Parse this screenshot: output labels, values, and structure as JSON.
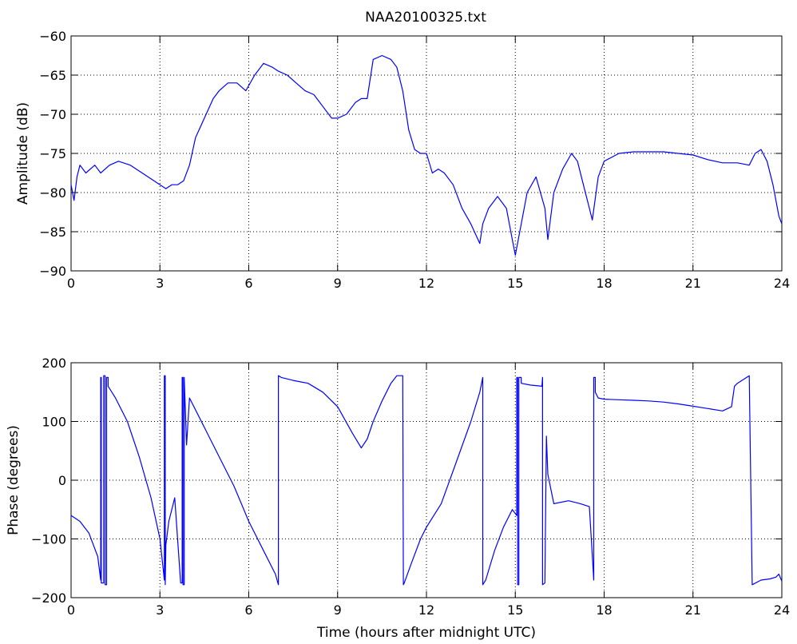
{
  "chart_data": [
    {
      "type": "line",
      "title": "NAA20100325.txt",
      "xlabel": "",
      "ylabel": "Amplitude (dB)",
      "xlim": [
        0,
        24
      ],
      "ylim": [
        -90,
        -60
      ],
      "xticks": [
        0,
        3,
        6,
        9,
        12,
        15,
        18,
        21,
        24
      ],
      "yticks": [
        -90,
        -85,
        -80,
        -75,
        -70,
        -65,
        -60
      ],
      "xtick_labels": [
        "0",
        "3",
        "6",
        "9",
        "12",
        "15",
        "18",
        "21",
        "24"
      ],
      "ytick_labels": [
        "−90",
        "−85",
        "−80",
        "−75",
        "−70",
        "−65",
        "−60"
      ],
      "grid": true,
      "color": "#0000ff",
      "series": [
        {
          "x": [
            0,
            0.1,
            0.2,
            0.3,
            0.5,
            0.8,
            1.0,
            1.3,
            1.6,
            2.0,
            2.4,
            2.8,
            3.0,
            3.2,
            3.4,
            3.6,
            3.8,
            4.0,
            4.2,
            4.5,
            4.8,
            5.0,
            5.3,
            5.6,
            5.9,
            6.2,
            6.5,
            6.8,
            7.0,
            7.3,
            7.6,
            7.9,
            8.2,
            8.5,
            8.8,
            9.0,
            9.3,
            9.6,
            9.8,
            10.0,
            10.2,
            10.5,
            10.8,
            11.0,
            11.2,
            11.4,
            11.6,
            11.8,
            12.0,
            12.2,
            12.4,
            12.6,
            12.9,
            13.2,
            13.5,
            13.8,
            13.9,
            14.1,
            14.4,
            14.7,
            14.9,
            15.0,
            15.2,
            15.4,
            15.7,
            16.0,
            16.1,
            16.3,
            16.6,
            16.9,
            17.1,
            17.3,
            17.5,
            17.6,
            17.8,
            18.0,
            18.5,
            19.0,
            19.5,
            20.0,
            20.5,
            21.0,
            21.5,
            22.0,
            22.5,
            22.9,
            23.1,
            23.3,
            23.5,
            23.7,
            23.9,
            24.0
          ],
          "values": [
            -79,
            -81,
            -78,
            -76.5,
            -77.5,
            -76.5,
            -77.5,
            -76.5,
            -76,
            -76.5,
            -77.5,
            -78.5,
            -79,
            -79.5,
            -79,
            -79,
            -78.5,
            -76.5,
            -73,
            -70.5,
            -68,
            -67,
            -66,
            -66,
            -67,
            -65,
            -63.5,
            -64,
            -64.5,
            -65,
            -66,
            -67,
            -67.5,
            -69,
            -70.5,
            -70.5,
            -70,
            -68.5,
            -68,
            -68,
            -63,
            -62.5,
            -63,
            -64,
            -67,
            -72,
            -74.5,
            -75,
            -75,
            -77.5,
            -77,
            -77.5,
            -79,
            -82,
            -84,
            -86.5,
            -84,
            -82,
            -80.5,
            -82,
            -86,
            -88,
            -84,
            -80,
            -78,
            -82,
            -86,
            -80,
            -77,
            -75,
            -76,
            -79,
            -82,
            -83.5,
            -78,
            -76,
            -75,
            -74.8,
            -74.8,
            -74.8,
            -75,
            -75.2,
            -75.8,
            -76.2,
            -76.2,
            -76.5,
            -75,
            -74.5,
            -76,
            -79,
            -83,
            -84
          ]
        }
      ]
    },
    {
      "type": "line",
      "title": "",
      "xlabel": "Time (hours after midnight UTC)",
      "ylabel": "Phase (degrees)",
      "xlim": [
        0,
        24
      ],
      "ylim": [
        -200,
        200
      ],
      "xticks": [
        0,
        3,
        6,
        9,
        12,
        15,
        18,
        21,
        24
      ],
      "yticks": [
        -200,
        -100,
        0,
        100,
        200
      ],
      "xtick_labels": [
        "0",
        "3",
        "6",
        "9",
        "12",
        "15",
        "18",
        "21",
        "24"
      ],
      "ytick_labels": [
        "−200",
        "−100",
        "0",
        "100",
        "200"
      ],
      "grid": true,
      "color": "#0000ff",
      "series": [
        {
          "x": [
            0,
            0.3,
            0.6,
            0.9,
            1.0,
            1.0,
            1.02,
            1.02,
            1.1,
            1.1,
            1.15,
            1.15,
            1.2,
            1.2,
            1.25,
            1.25,
            1.5,
            1.9,
            2.3,
            2.7,
            3.0,
            3.15,
            3.15,
            3.18,
            3.18,
            3.2,
            3.3,
            3.5,
            3.7,
            3.75,
            3.75,
            3.78,
            3.78,
            3.82,
            3.82,
            3.9,
            4.0,
            4.5,
            5.0,
            5.5,
            6.0,
            6.5,
            6.9,
            7.0,
            7.0,
            7.1,
            7.5,
            8.0,
            8.5,
            9.0,
            9.5,
            9.8,
            10.0,
            10.2,
            10.5,
            10.8,
            11.0,
            11.2,
            11.22,
            11.22,
            11.25,
            11.5,
            11.8,
            12.0,
            12.5,
            13.0,
            13.5,
            13.8,
            13.9,
            13.9,
            14.0,
            14.3,
            14.6,
            14.9,
            15.05,
            15.05,
            15.08,
            15.08,
            15.12,
            15.12,
            15.2,
            15.2,
            15.5,
            15.9,
            15.92,
            15.92,
            16.0,
            16.05,
            16.1,
            16.3,
            16.8,
            17.2,
            17.5,
            17.65,
            17.65,
            17.7,
            17.7,
            17.8,
            18.0,
            18.5,
            19.0,
            19.5,
            20.0,
            20.5,
            21.0,
            21.5,
            22.0,
            22.3,
            22.4,
            22.5,
            22.9,
            22.9,
            23.0,
            23.3,
            23.6,
            23.8,
            23.9,
            24.0
          ],
          "values": [
            -60,
            -70,
            -90,
            -130,
            -170,
            175,
            175,
            -175,
            -175,
            178,
            178,
            -178,
            -178,
            175,
            175,
            160,
            140,
            100,
            40,
            -30,
            -100,
            -170,
            178,
            178,
            -178,
            -110,
            -70,
            -30,
            -175,
            -175,
            175,
            175,
            -178,
            -178,
            175,
            60,
            140,
            90,
            40,
            -10,
            -70,
            -120,
            -160,
            -178,
            178,
            175,
            170,
            165,
            150,
            125,
            80,
            55,
            70,
            100,
            135,
            165,
            178,
            178,
            -178,
            -178,
            -175,
            -140,
            -100,
            -80,
            -40,
            30,
            100,
            150,
            175,
            -178,
            -170,
            -120,
            -80,
            -50,
            -60,
            175,
            175,
            -178,
            -178,
            175,
            175,
            165,
            162,
            160,
            175,
            -178,
            -175,
            75,
            10,
            -40,
            -35,
            -40,
            -45,
            -170,
            175,
            175,
            150,
            140,
            138,
            137,
            136,
            135,
            133,
            130,
            126,
            122,
            118,
            125,
            160,
            165,
            178,
            178,
            -178,
            -170,
            -168,
            -165,
            -160,
            -172
          ]
        }
      ]
    }
  ]
}
